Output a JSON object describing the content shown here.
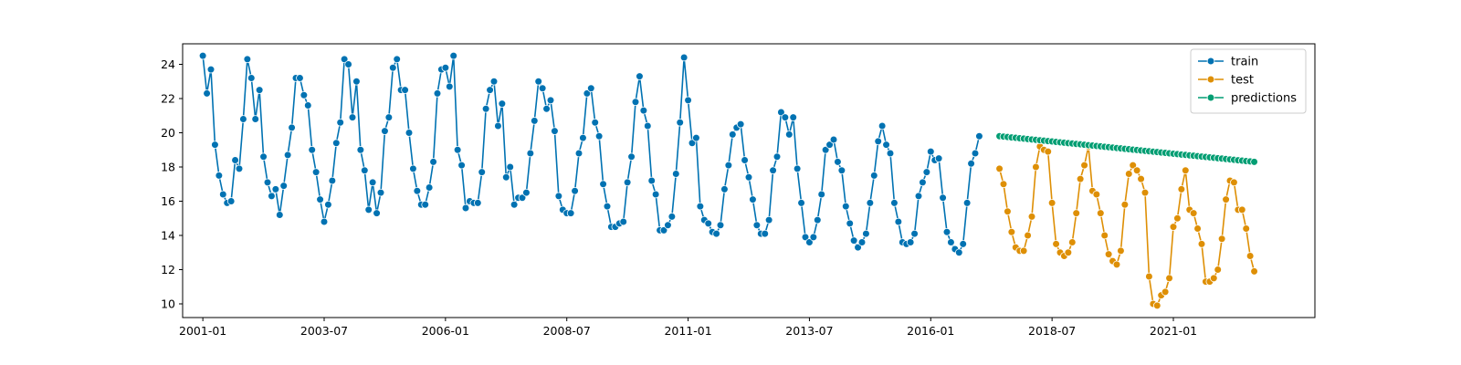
{
  "chart_data": {
    "type": "line",
    "title": "",
    "xlabel": "",
    "ylabel": "",
    "x_start": "2001-01",
    "frequency": "monthly",
    "xlim": [
      "2000-08",
      "2023-12"
    ],
    "ylim": [
      9.2,
      25.2
    ],
    "x_ticks": [
      "2001-01",
      "2003-07",
      "2006-01",
      "2008-07",
      "2011-01",
      "2013-07",
      "2016-01",
      "2018-07",
      "2021-01"
    ],
    "y_ticks": [
      10,
      12,
      14,
      16,
      18,
      20,
      22,
      24
    ],
    "grid": false,
    "legend_position": "upper right",
    "series": [
      {
        "name": "train",
        "color": "#0072b2",
        "start": "2001-01",
        "values": [
          24.5,
          22.3,
          23.7,
          19.3,
          17.5,
          16.4,
          15.9,
          16.0,
          18.4,
          17.9,
          20.8,
          24.3,
          23.2,
          20.8,
          22.5,
          18.6,
          17.1,
          16.3,
          16.7,
          15.2,
          16.9,
          18.7,
          20.3,
          23.2,
          23.2,
          22.2,
          21.6,
          19.0,
          17.7,
          16.1,
          14.8,
          15.8,
          17.2,
          19.4,
          20.6,
          24.3,
          24.0,
          20.9,
          23.0,
          19.0,
          17.8,
          15.5,
          17.1,
          15.3,
          16.5,
          20.1,
          20.9,
          23.8,
          24.3,
          22.5,
          22.5,
          20.0,
          17.9,
          16.6,
          15.8,
          15.8,
          16.8,
          18.3,
          22.3,
          23.7,
          23.8,
          22.7,
          24.5,
          19.0,
          18.1,
          15.6,
          16.0,
          15.9,
          15.9,
          17.7,
          21.4,
          22.5,
          23.0,
          20.4,
          21.7,
          17.4,
          18.0,
          15.8,
          16.2,
          16.2,
          16.5,
          18.8,
          20.7,
          23.0,
          22.6,
          21.4,
          21.9,
          20.1,
          16.3,
          15.5,
          15.3,
          15.3,
          16.6,
          18.8,
          19.7,
          22.3,
          22.6,
          20.6,
          19.8,
          17.0,
          15.7,
          14.5,
          14.5,
          14.7,
          14.8,
          17.1,
          18.6,
          21.8,
          23.3,
          21.3,
          20.4,
          17.2,
          16.4,
          14.3,
          14.3,
          14.6,
          15.1,
          17.6,
          20.6,
          24.4,
          21.9,
          19.4,
          19.7,
          15.7,
          14.9,
          14.7,
          14.2,
          14.1,
          14.6,
          16.7,
          18.1,
          19.9,
          20.3,
          20.5,
          18.4,
          17.4,
          16.1,
          14.6,
          14.1,
          14.1,
          14.9,
          17.8,
          18.6,
          21.2,
          20.9,
          19.9,
          20.9,
          17.9,
          15.9,
          13.9,
          13.6,
          13.9,
          14.9,
          16.4,
          19.0,
          19.3,
          19.6,
          18.3,
          17.8,
          15.7,
          14.7,
          13.7,
          13.3,
          13.6,
          14.1,
          15.9,
          17.5,
          19.5,
          20.4,
          19.3,
          18.8,
          15.9,
          14.8,
          13.6,
          13.5,
          13.6,
          14.1,
          16.3,
          17.1,
          17.7,
          18.9,
          18.4,
          18.5,
          16.2,
          14.2,
          13.6,
          13.2,
          13.0,
          13.5,
          15.9,
          18.2,
          18.8,
          19.8
        ]
      },
      {
        "name": "test",
        "color": "#de8f05",
        "start": "2017-06",
        "values": [
          17.9,
          17.0,
          15.4,
          14.2,
          13.3,
          13.1,
          13.1,
          14.0,
          15.1,
          18.0,
          19.2,
          19.0,
          18.9,
          15.9,
          13.5,
          13.0,
          12.8,
          13.0,
          13.6,
          15.3,
          17.3,
          18.1,
          19.2,
          16.6,
          16.4,
          15.3,
          14.0,
          12.9,
          12.5,
          12.3,
          13.1,
          15.8,
          17.6,
          18.1,
          17.8,
          17.3,
          16.5,
          11.6,
          10.0,
          9.9,
          10.5,
          10.7,
          11.5,
          14.5,
          15.0,
          16.7,
          17.8,
          15.5,
          15.3,
          14.4,
          13.5,
          11.3,
          11.3,
          11.5,
          12.0,
          13.8,
          16.1,
          17.2,
          17.1,
          15.5,
          15.5,
          14.4,
          12.8,
          11.9
        ]
      },
      {
        "name": "predictions",
        "color": "#029e73",
        "start": "2017-06",
        "values_start": 19.8,
        "values_end": 18.3,
        "count": 64
      }
    ]
  }
}
